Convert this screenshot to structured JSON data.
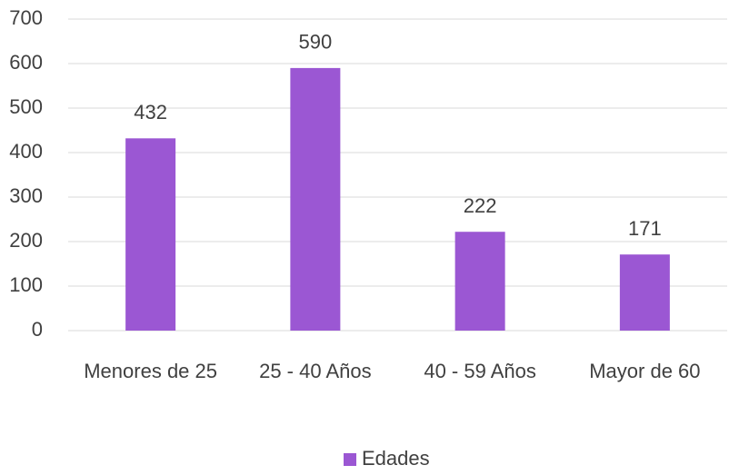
{
  "chart_data": {
    "type": "bar",
    "categories": [
      "Menores de 25",
      "25 - 40 Años",
      "40 - 59 Años",
      "Mayor de 60"
    ],
    "series": [
      {
        "name": "Edades",
        "color": "#9b57d3",
        "values": [
          432,
          590,
          222,
          171
        ]
      }
    ],
    "ylim": [
      0,
      700
    ],
    "yticks": [
      0,
      100,
      200,
      300,
      400,
      500,
      600,
      700
    ],
    "grid": true,
    "legend": "bottom"
  }
}
